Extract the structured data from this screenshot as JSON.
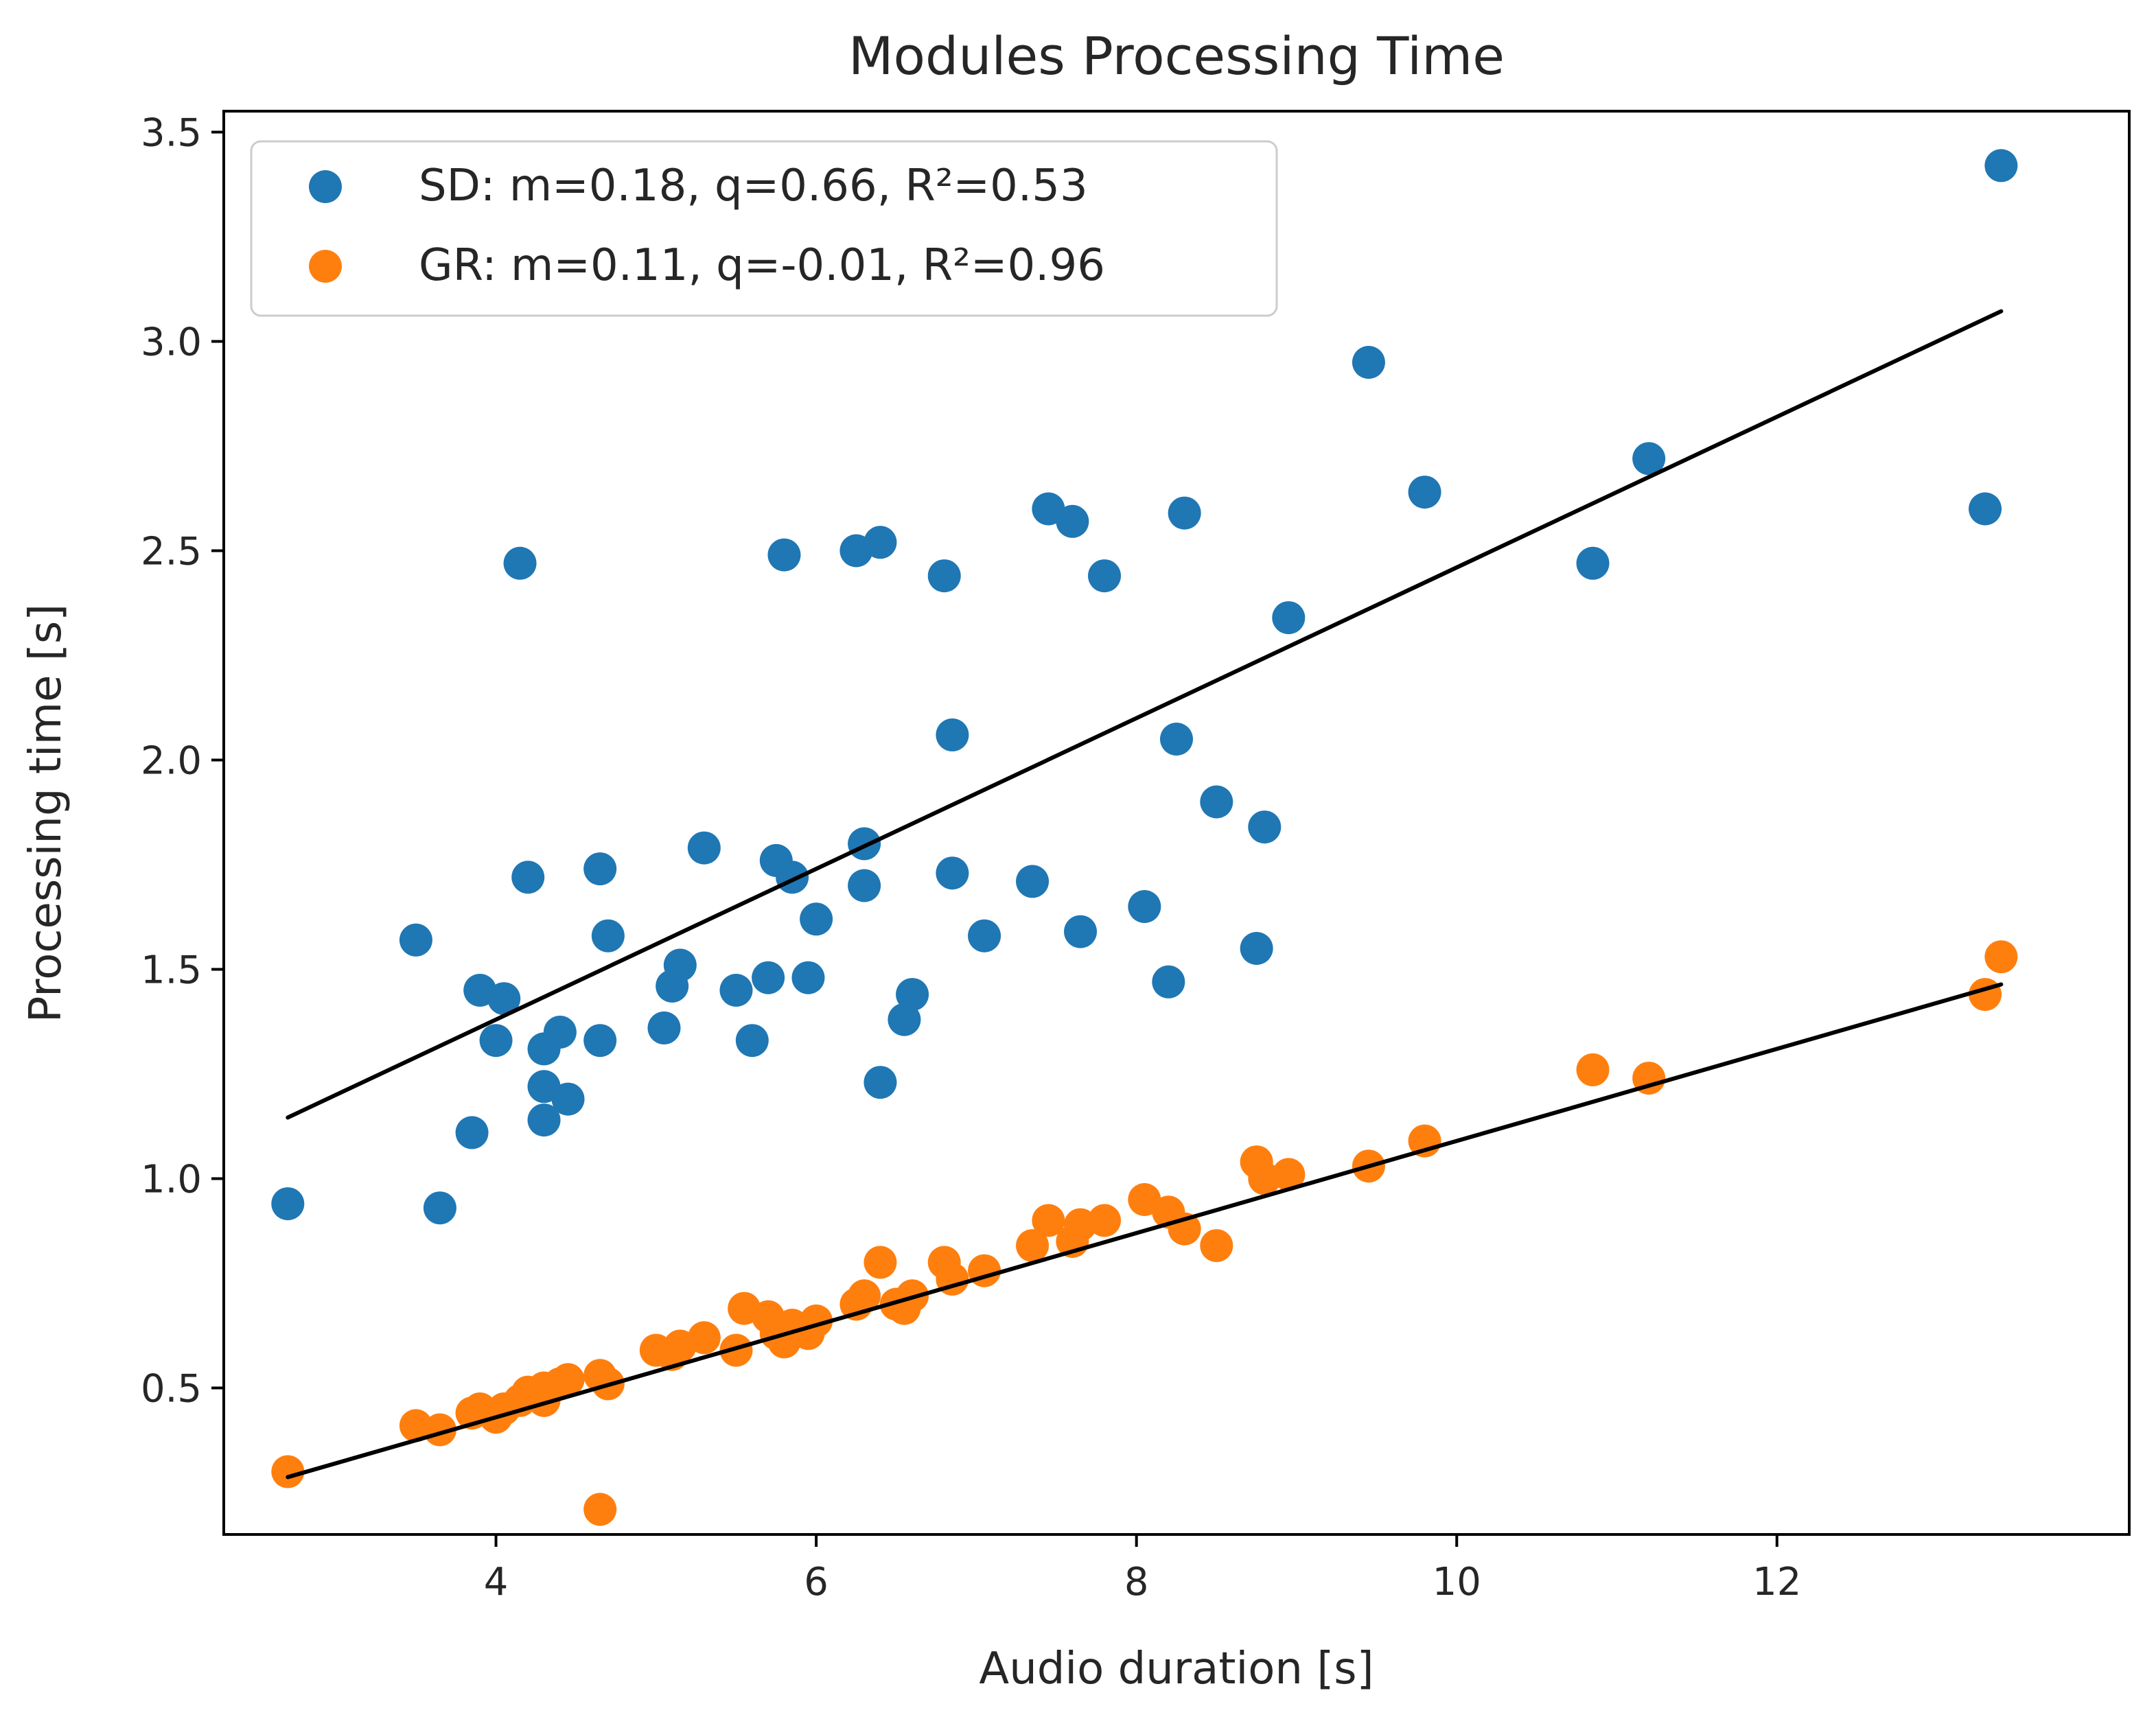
{
  "chart_data": {
    "type": "scatter",
    "title": "Modules Processing Time",
    "xlabel": "Audio duration [s]",
    "ylabel": "Processing time [s]",
    "xlim": [
      2.3,
      14.2
    ],
    "ylim": [
      0.15,
      3.55
    ],
    "xticks": [
      "4",
      "6",
      "8",
      "10",
      "12"
    ],
    "yticks": [
      "0.5",
      "1.0",
      "1.5",
      "2.0",
      "2.5",
      "3.0",
      "3.5"
    ],
    "grid": false,
    "legend_position": "top-left",
    "series": [
      {
        "name": "SD",
        "legend": "SD: m=0.18, q=0.66, R²=0.53",
        "color": "#1f77b4",
        "fit": {
          "m": 0.18,
          "q": 0.66,
          "x_range": [
            2.7,
            13.4
          ]
        },
        "points": [
          [
            2.7,
            0.94
          ],
          [
            3.5,
            1.57
          ],
          [
            3.65,
            0.93
          ],
          [
            3.85,
            1.11
          ],
          [
            3.9,
            1.45
          ],
          [
            4.0,
            1.33
          ],
          [
            4.05,
            1.43
          ],
          [
            4.15,
            2.47
          ],
          [
            4.2,
            1.72
          ],
          [
            4.3,
            1.31
          ],
          [
            4.3,
            1.22
          ],
          [
            4.3,
            1.14
          ],
          [
            4.4,
            1.35
          ],
          [
            4.45,
            1.19
          ],
          [
            4.65,
            1.74
          ],
          [
            4.65,
            1.33
          ],
          [
            4.7,
            1.58
          ],
          [
            5.05,
            1.36
          ],
          [
            5.1,
            1.46
          ],
          [
            5.15,
            1.51
          ],
          [
            5.3,
            1.79
          ],
          [
            5.5,
            1.45
          ],
          [
            5.6,
            1.33
          ],
          [
            5.7,
            1.48
          ],
          [
            5.75,
            1.76
          ],
          [
            5.8,
            2.49
          ],
          [
            5.85,
            1.72
          ],
          [
            5.95,
            1.48
          ],
          [
            6.0,
            1.62
          ],
          [
            6.25,
            2.5
          ],
          [
            6.3,
            1.8
          ],
          [
            6.3,
            1.7
          ],
          [
            6.4,
            2.52
          ],
          [
            6.4,
            1.23
          ],
          [
            6.55,
            1.38
          ],
          [
            6.6,
            1.44
          ],
          [
            6.8,
            2.44
          ],
          [
            6.85,
            2.06
          ],
          [
            6.85,
            1.73
          ],
          [
            7.05,
            1.58
          ],
          [
            7.35,
            1.71
          ],
          [
            7.45,
            2.6
          ],
          [
            7.6,
            2.57
          ],
          [
            7.65,
            1.59
          ],
          [
            7.8,
            2.44
          ],
          [
            8.05,
            1.65
          ],
          [
            8.2,
            1.47
          ],
          [
            8.25,
            2.05
          ],
          [
            8.3,
            2.59
          ],
          [
            8.5,
            1.9
          ],
          [
            8.75,
            1.55
          ],
          [
            8.8,
            1.84
          ],
          [
            8.95,
            2.34
          ],
          [
            9.45,
            2.95
          ],
          [
            9.8,
            2.64
          ],
          [
            10.85,
            2.47
          ],
          [
            11.2,
            2.72
          ],
          [
            13.3,
            2.6
          ],
          [
            13.4,
            3.42
          ]
        ]
      },
      {
        "name": "GR",
        "legend": "GR: m=0.11, q=-0.01, R²=0.96",
        "color": "#ff7f0e",
        "fit": {
          "m": 0.11,
          "q": -0.01,
          "x_range": [
            2.7,
            13.4
          ]
        },
        "points": [
          [
            2.7,
            0.3
          ],
          [
            3.5,
            0.41
          ],
          [
            3.65,
            0.4
          ],
          [
            3.85,
            0.44
          ],
          [
            3.9,
            0.45
          ],
          [
            4.0,
            0.43
          ],
          [
            4.05,
            0.45
          ],
          [
            4.15,
            0.47
          ],
          [
            4.2,
            0.49
          ],
          [
            4.3,
            0.5
          ],
          [
            4.3,
            0.47
          ],
          [
            4.4,
            0.51
          ],
          [
            4.45,
            0.52
          ],
          [
            4.65,
            0.53
          ],
          [
            4.65,
            0.21
          ],
          [
            4.7,
            0.51
          ],
          [
            5.0,
            0.59
          ],
          [
            5.1,
            0.58
          ],
          [
            5.15,
            0.6
          ],
          [
            5.3,
            0.62
          ],
          [
            5.5,
            0.59
          ],
          [
            5.55,
            0.69
          ],
          [
            5.7,
            0.67
          ],
          [
            5.75,
            0.63
          ],
          [
            5.8,
            0.61
          ],
          [
            5.85,
            0.65
          ],
          [
            5.95,
            0.63
          ],
          [
            6.0,
            0.66
          ],
          [
            6.25,
            0.7
          ],
          [
            6.3,
            0.72
          ],
          [
            6.4,
            0.8
          ],
          [
            6.5,
            0.7
          ],
          [
            6.55,
            0.69
          ],
          [
            6.6,
            0.72
          ],
          [
            6.8,
            0.8
          ],
          [
            6.85,
            0.76
          ],
          [
            7.05,
            0.78
          ],
          [
            7.35,
            0.84
          ],
          [
            7.45,
            0.9
          ],
          [
            7.6,
            0.85
          ],
          [
            7.65,
            0.89
          ],
          [
            7.8,
            0.9
          ],
          [
            8.05,
            0.95
          ],
          [
            8.2,
            0.92
          ],
          [
            8.3,
            0.88
          ],
          [
            8.5,
            0.84
          ],
          [
            8.75,
            1.04
          ],
          [
            8.8,
            1.0
          ],
          [
            8.95,
            1.01
          ],
          [
            9.45,
            1.03
          ],
          [
            9.8,
            1.09
          ],
          [
            10.85,
            1.26
          ],
          [
            11.2,
            1.24
          ],
          [
            13.3,
            1.44
          ],
          [
            13.4,
            1.53
          ]
        ]
      }
    ]
  }
}
